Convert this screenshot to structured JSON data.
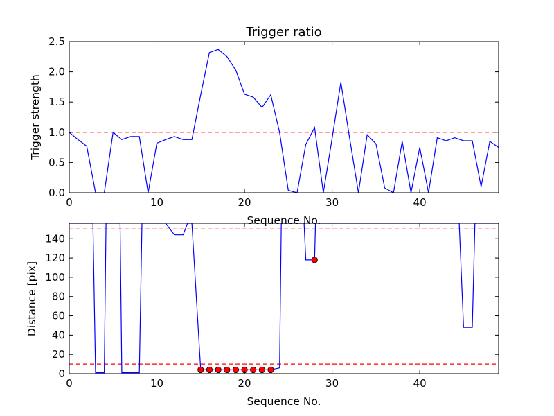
{
  "chart_data": [
    {
      "type": "line",
      "title": "Trigger ratio",
      "xlabel": "Sequence No.",
      "ylabel": "Trigger strength",
      "xlim": [
        0,
        49
      ],
      "ylim": [
        0,
        2.5
      ],
      "xticks": [
        0,
        10,
        20,
        30,
        40
      ],
      "yticks": [
        0.0,
        0.5,
        1.0,
        1.5,
        2.0,
        2.5
      ],
      "ytick_labels": [
        "0.0",
        "0.5",
        "1.0",
        "1.5",
        "2.0",
        "2.5"
      ],
      "grid": false,
      "series": [
        {
          "color": "#0000ff",
          "x": [
            0,
            1,
            2,
            3,
            4,
            5,
            6,
            7,
            8,
            9,
            10,
            11,
            12,
            13,
            14,
            15,
            16,
            17,
            18,
            19,
            20,
            21,
            22,
            23,
            24,
            25,
            26,
            27,
            28,
            29,
            30,
            31,
            32,
            33,
            34,
            35,
            36,
            37,
            38,
            39,
            40,
            41,
            42,
            43,
            44,
            45,
            46,
            47,
            48,
            49
          ],
          "y": [
            1.0,
            0.88,
            0.77,
            0.0,
            0.0,
            1.0,
            0.88,
            0.93,
            0.93,
            0.0,
            0.82,
            0.88,
            0.93,
            0.88,
            0.88,
            1.62,
            2.32,
            2.37,
            2.25,
            2.03,
            1.63,
            1.58,
            1.41,
            1.62,
            1.0,
            0.04,
            0.0,
            0.8,
            1.08,
            0.0,
            0.9,
            1.83,
            0.9,
            0.0,
            0.96,
            0.81,
            0.08,
            0.0,
            0.85,
            0.0,
            0.75,
            0.0,
            0.91,
            0.86,
            0.91,
            0.86,
            0.86,
            0.1,
            0.85,
            0.75
          ]
        }
      ],
      "reference_lines": [
        {
          "y": 1.0,
          "color": "#ff0000",
          "style": "dashed"
        }
      ]
    },
    {
      "type": "line",
      "title": "",
      "xlabel": "Sequence No.",
      "ylabel": "Distance [pix]",
      "xlim": [
        0,
        49
      ],
      "ylim": [
        0,
        156
      ],
      "xticks": [
        0,
        10,
        20,
        30,
        40
      ],
      "yticks": [
        0,
        20,
        40,
        60,
        80,
        100,
        120,
        140
      ],
      "ytick_labels": [
        "0",
        "20",
        "40",
        "60",
        "80",
        "100",
        "120",
        "140"
      ],
      "grid": false,
      "series": [
        {
          "color": "#0000ff",
          "x": [
            0,
            1,
            2,
            2.7,
            3,
            4,
            4.2,
            5.8,
            6,
            7,
            8,
            8.3,
            9,
            10,
            11,
            12,
            13,
            13.5,
            14,
            15,
            16,
            17,
            18,
            19,
            20,
            21,
            22,
            23,
            24,
            24.2,
            25,
            26,
            26.8,
            27,
            28,
            28.1,
            29,
            30,
            31,
            32,
            33,
            34,
            35,
            36,
            37,
            38,
            39,
            40,
            41,
            42,
            43,
            44,
            44.5,
            45,
            46,
            46.3,
            47,
            48,
            49
          ],
          "y": [
            156,
            156,
            156,
            156,
            1,
            1,
            156,
            156,
            1,
            1,
            1,
            156,
            156,
            156,
            156,
            144,
            144,
            156,
            156,
            4,
            4,
            4,
            4,
            4,
            4,
            4,
            4,
            4,
            6,
            156,
            156,
            156,
            156,
            118,
            118,
            156,
            156,
            156,
            156,
            156,
            156,
            156,
            156,
            156,
            156,
            156,
            156,
            156,
            156,
            156,
            156,
            156,
            156,
            48,
            48,
            156,
            156,
            156,
            156
          ]
        }
      ],
      "markers": {
        "color": "#ff0000",
        "x": [
          15,
          16,
          17,
          18,
          19,
          20,
          21,
          22,
          23,
          28
        ],
        "y": [
          4,
          4,
          4,
          4,
          4,
          4,
          4,
          4,
          4,
          118
        ]
      },
      "reference_lines": [
        {
          "y": 150,
          "color": "#ff0000",
          "style": "dashed"
        },
        {
          "y": 10,
          "color": "#ff0000",
          "style": "dashed"
        }
      ]
    }
  ]
}
